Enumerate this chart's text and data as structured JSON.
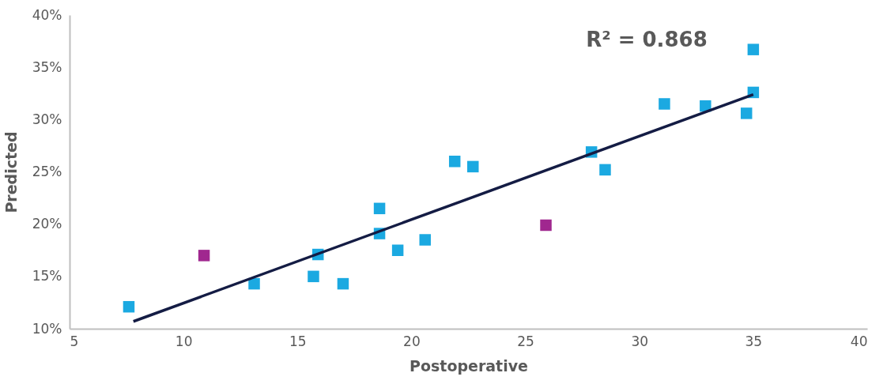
{
  "chart_data": {
    "type": "scatter",
    "xlabel": "Postoperative",
    "ylabel": "Predicted",
    "annotations": [
      "R² = 0.868"
    ],
    "xlim": [
      5,
      40
    ],
    "xticks": [
      5,
      10,
      15,
      20,
      25,
      30,
      35,
      40
    ],
    "ylim": [
      10,
      40
    ],
    "yticks": [
      {
        "value": 10,
        "label": "10%"
      },
      {
        "value": 15,
        "label": "15%"
      },
      {
        "value": 20,
        "label": "20%"
      },
      {
        "value": 25,
        "label": "25%"
      },
      {
        "value": 30,
        "label": "30%"
      },
      {
        "value": 35,
        "label": "35%"
      },
      {
        "value": 40,
        "label": "40%"
      }
    ],
    "grid": false,
    "marker": "square",
    "series": [
      {
        "type": "scatter",
        "color": "#1ba9e1",
        "x": [
          7.6,
          13.1,
          15.7,
          15.9,
          17.0,
          18.6,
          18.6,
          19.4,
          20.6,
          21.9,
          22.7,
          27.9,
          28.5,
          31.1,
          32.9,
          34.7,
          35.0,
          35.0
        ],
        "values": [
          12.1,
          14.3,
          15.0,
          17.1,
          14.3,
          21.5,
          19.1,
          17.5,
          18.5,
          26.0,
          25.5,
          26.9,
          25.2,
          31.5,
          31.3,
          30.6,
          32.6,
          36.7
        ]
      },
      {
        "type": "scatter",
        "color": "#a0278f",
        "x": [
          10.9,
          25.9
        ],
        "values": [
          17.0,
          19.9
        ]
      },
      {
        "type": "line",
        "color": "#141c44",
        "x": [
          7.8,
          35.0
        ],
        "values": [
          10.7,
          32.4
        ],
        "line_style": "solid",
        "marker": "none"
      }
    ]
  }
}
